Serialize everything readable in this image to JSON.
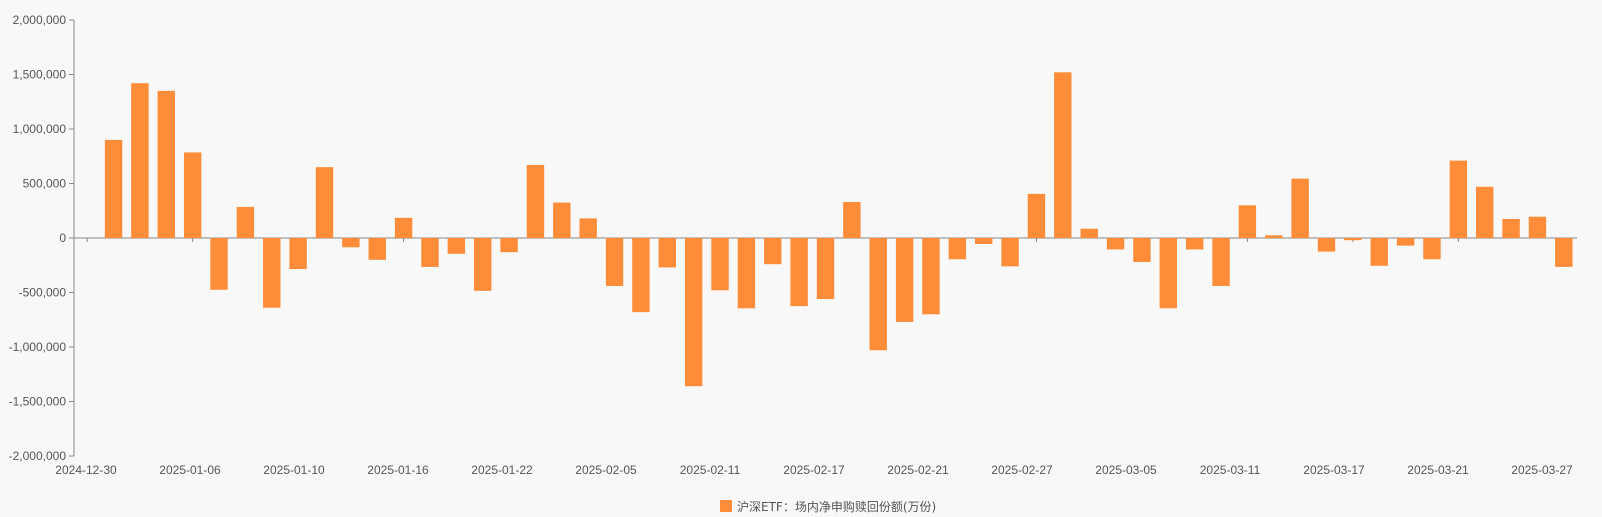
{
  "chart_data": {
    "type": "bar",
    "title": "",
    "xlabel": "",
    "ylabel": "",
    "ylim": [
      -2000000,
      2000000
    ],
    "yticks": [
      2000000,
      1500000,
      1000000,
      500000,
      0,
      -500000,
      -1000000,
      -1500000,
      -2000000
    ],
    "ytick_labels": [
      "2,000,000",
      "1,500,000",
      "1,000,000",
      "500,000",
      "0",
      "-500,000",
      "-1,000,000",
      "-1,500,000",
      "-2,000,000"
    ],
    "xtick_labels": [
      "2024-12-30",
      "2025-01-06",
      "2025-01-10",
      "2025-01-16",
      "2025-01-22",
      "2025-02-05",
      "2025-02-11",
      "2025-02-17",
      "2025-02-21",
      "2025-02-27",
      "2025-03-05",
      "2025-03-11",
      "2025-03-17",
      "2025-03-21",
      "2025-03-27"
    ],
    "grid": false,
    "legend_position": "bottom-center",
    "color": "#ff8c38",
    "series": [
      {
        "name": "沪深ETF：场内净申购赎回份额(万份)",
        "values": [
          0,
          900000,
          1420000,
          1350000,
          785000,
          -475000,
          285000,
          -640000,
          -285000,
          650000,
          -85000,
          -200000,
          185000,
          -265000,
          -145000,
          -485000,
          -130000,
          670000,
          325000,
          180000,
          -440000,
          -680000,
          -270000,
          -1360000,
          -480000,
          -645000,
          -240000,
          -625000,
          -560000,
          330000,
          -1030000,
          -770000,
          -700000,
          -195000,
          -55000,
          -260000,
          405000,
          1520000,
          85000,
          -105000,
          -220000,
          -645000,
          -105000,
          -440000,
          300000,
          25000,
          545000,
          -125000,
          -20000,
          -255000,
          -70000,
          -195000,
          710000,
          470000,
          175000,
          195000,
          -265000
        ]
      }
    ]
  }
}
